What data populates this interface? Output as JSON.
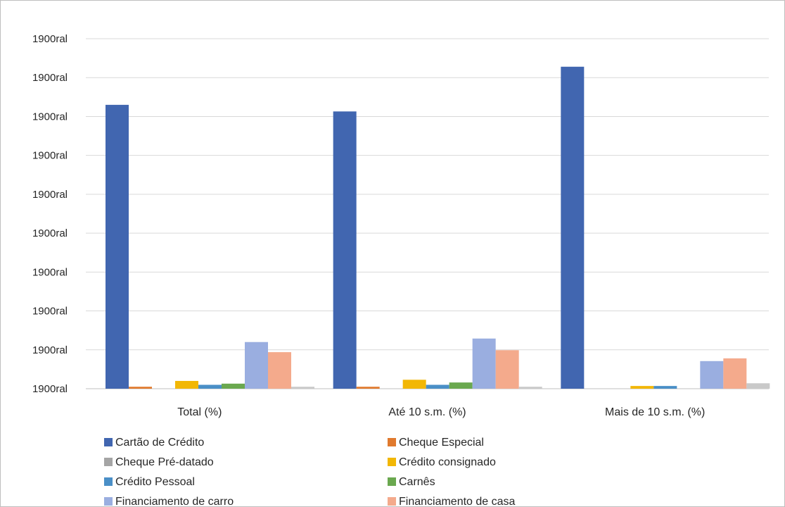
{
  "chart_data": {
    "type": "bar",
    "title": "",
    "xlabel": "",
    "ylabel": "",
    "categories": [
      "Total (%)",
      "Até 10 s.m. (%)",
      "Mais de 10 s.m. (%)"
    ],
    "y_tick_labels": [
      "1900ral",
      "1900ral",
      "1900ral",
      "1900ral",
      "1900ral",
      "1900ral",
      "1900ral",
      "1900ral",
      "1900ral",
      "1900ral"
    ],
    "ylim": [
      0,
      90
    ],
    "grid": true,
    "legend_position": "bottom",
    "series": [
      {
        "name": "Cartão de Crédito",
        "color": "#4166b0",
        "values": [
          73,
          71.3,
          82.8
        ]
      },
      {
        "name": "Cheque Especial",
        "color": "#e07a2e",
        "values": [
          0.5,
          0.5,
          0
        ]
      },
      {
        "name": "Cheque Pré-datado",
        "color": "#a5a5a5",
        "values": [
          0,
          0,
          0
        ]
      },
      {
        "name": "Crédito consignado",
        "color": "#f2b705",
        "values": [
          2,
          2.3,
          0.7
        ]
      },
      {
        "name": "Crédito Pessoal",
        "color": "#4a8fc7",
        "values": [
          1,
          1,
          0.7
        ]
      },
      {
        "name": "Carnês",
        "color": "#6aa84f",
        "values": [
          1.3,
          1.6,
          0
        ]
      },
      {
        "name": "Financiamento de carro",
        "color": "#9aaee0",
        "values": [
          12,
          12.9,
          7.1
        ]
      },
      {
        "name": "Financiamento de casa",
        "color": "#f4aa8c",
        "values": [
          9.4,
          9.9,
          7.8
        ]
      },
      {
        "name": "",
        "color": "#c9c9c9",
        "values": [
          0.5,
          0.5,
          1.4
        ]
      }
    ]
  }
}
